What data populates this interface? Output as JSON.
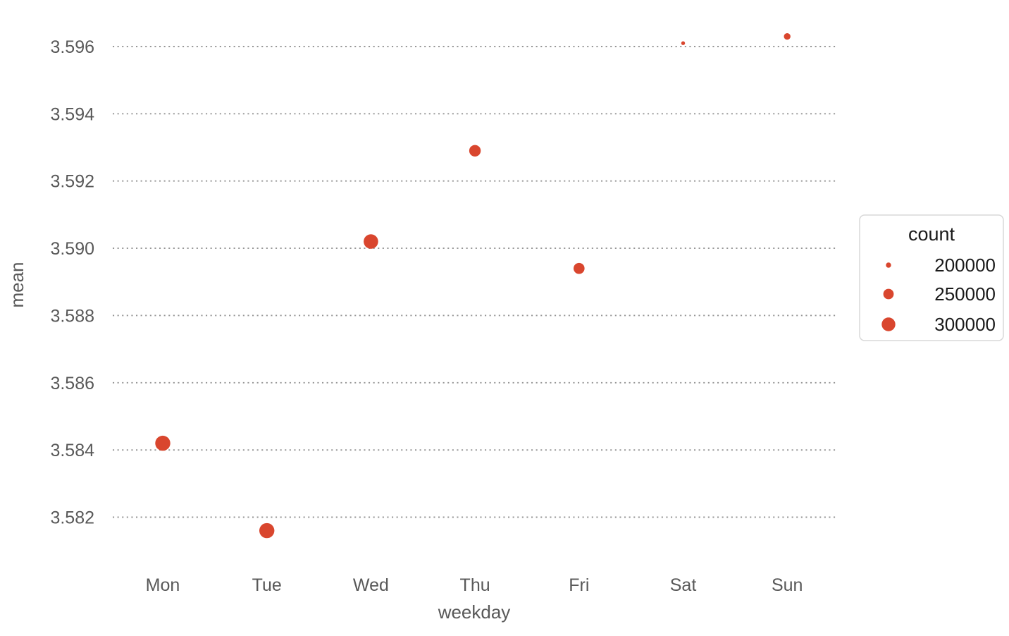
{
  "figure": {
    "background": "#ffffff"
  },
  "chart_data": {
    "type": "scatter",
    "subtype": "bubble",
    "title": "",
    "xlabel": "weekday",
    "ylabel": "mean",
    "categories": [
      "Mon",
      "Tue",
      "Wed",
      "Thu",
      "Fri",
      "Sat",
      "Sun"
    ],
    "y_ticks": [
      3.582,
      3.584,
      3.586,
      3.588,
      3.59,
      3.592,
      3.594,
      3.596
    ],
    "ylim": [
      3.5805,
      3.5972
    ],
    "grid": "horizontal-dotted",
    "points": [
      {
        "weekday": "Mon",
        "mean": 3.5842,
        "count": 320000,
        "radius_px": 10.7
      },
      {
        "weekday": "Tue",
        "mean": 3.5816,
        "count": 320000,
        "radius_px": 10.7
      },
      {
        "weekday": "Wed",
        "mean": 3.5902,
        "count": 310000,
        "radius_px": 10.3
      },
      {
        "weekday": "Thu",
        "mean": 3.5929,
        "count": 268000,
        "radius_px": 8.2
      },
      {
        "weekday": "Fri",
        "mean": 3.5894,
        "count": 260000,
        "radius_px": 7.8
      },
      {
        "weekday": "Sat",
        "mean": 3.5961,
        "count": 192000,
        "radius_px": 2.7
      },
      {
        "weekday": "Sun",
        "mean": 3.5963,
        "count": 211000,
        "radius_px": 4.7
      }
    ],
    "legend": {
      "title": "count",
      "position": "right",
      "entries": [
        {
          "label": "200000",
          "value": 200000,
          "radius_px": 3.7
        },
        {
          "label": "250000",
          "value": 250000,
          "radius_px": 7.4
        },
        {
          "label": "300000",
          "value": 300000,
          "radius_px": 9.7
        }
      ]
    },
    "colors": {
      "point": "#d9462e",
      "grid": "#969696",
      "axis_text": "#595959",
      "legend_text": "#1a1a1a",
      "legend_border": "#d9d9d9",
      "legend_fill": "#ffffff"
    }
  }
}
